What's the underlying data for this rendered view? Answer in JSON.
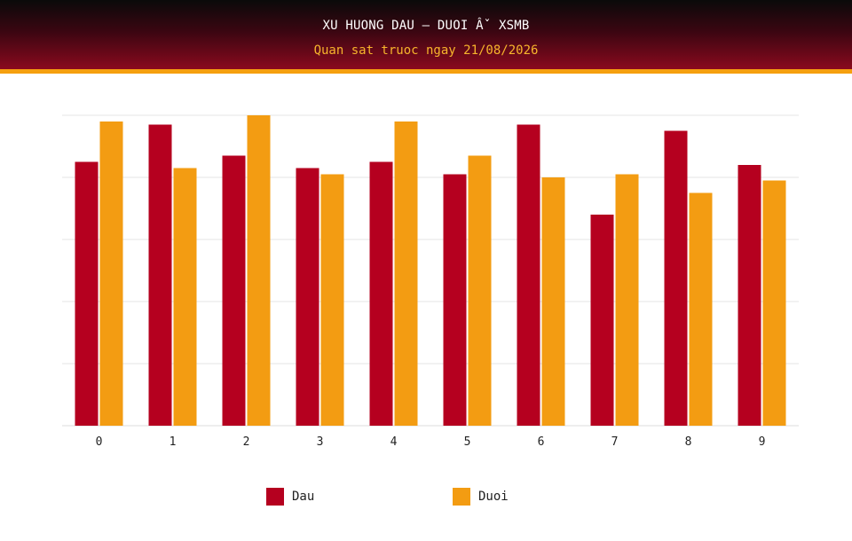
{
  "header": {
    "title": "XU HUONG DAU – DUOI Âˇ XSMB",
    "subtitle": "Quan sat truoc ngay 21/08/2026"
  },
  "colors": {
    "dau": "#b5001f",
    "duoi": "#f39c12",
    "grid": "#e6e6e6",
    "background": "#ffffff"
  },
  "chart_data": {
    "type": "bar",
    "title": "XU HUONG DAU – DUOI Âˇ XSMB",
    "subtitle": "Quan sat truoc ngay 21/08/2026",
    "categories": [
      "0",
      "1",
      "2",
      "3",
      "4",
      "5",
      "6",
      "7",
      "8",
      "9"
    ],
    "series": [
      {
        "name": "Dau",
        "color": "#b5001f",
        "values": [
          8.5,
          9.7,
          8.7,
          8.3,
          8.5,
          8.1,
          9.7,
          6.8,
          9.5,
          8.4
        ]
      },
      {
        "name": "Duoi",
        "color": "#f39c12",
        "values": [
          9.8,
          8.3,
          10.0,
          8.1,
          9.8,
          8.7,
          8.0,
          8.1,
          7.5,
          7.9
        ]
      }
    ],
    "ylim": [
      0,
      10
    ],
    "yticks_shown": false,
    "grid": true,
    "legend": "bottom"
  }
}
